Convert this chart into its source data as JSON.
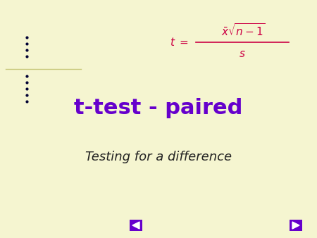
{
  "bg_color": "#f5f5d0",
  "title_text": "t-test - paired",
  "title_color": "#6600cc",
  "subtitle_text": "Testing for a difference",
  "subtitle_color": "#222222",
  "formula_color": "#cc0044",
  "dot_color": "#000033",
  "nav_color": "#6600cc",
  "title_fontsize": 22,
  "subtitle_fontsize": 13,
  "formula_fontsize": 11,
  "t_eq_fontsize": 11
}
